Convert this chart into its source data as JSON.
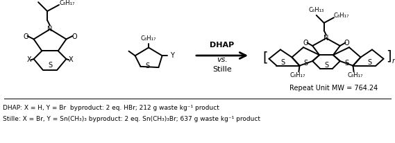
{
  "figsize": [
    5.69,
    2.06
  ],
  "dpi": 100,
  "bg_color": "#ffffff",
  "caption_line1": "DHAP: X = H, Y = Br  byproduct: 2 eq. HBr; 212 g waste kg⁻¹ product",
  "caption_line2": "Stille: X = Br, Y = Sn(CH₃)₃ byproduct: 2 eq. Sn(CH₃)₃Br; 637 g waste kg⁻¹ product",
  "dhap_label": "DHAP",
  "vs_label": "vs.",
  "stille_label": "Stille",
  "repeat_unit_label": "Repeat Unit MW = 764.24"
}
